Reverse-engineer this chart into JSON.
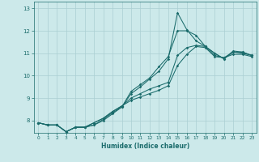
{
  "xlabel": "Humidex (Indice chaleur)",
  "xlim": [
    -0.5,
    23.5
  ],
  "ylim": [
    7.45,
    13.3
  ],
  "yticks": [
    8,
    9,
    10,
    11,
    12,
    13
  ],
  "xticks": [
    0,
    1,
    2,
    3,
    4,
    5,
    6,
    7,
    8,
    9,
    10,
    11,
    12,
    13,
    14,
    15,
    16,
    17,
    18,
    19,
    20,
    21,
    22,
    23
  ],
  "bg_color": "#cce9ea",
  "grid_color": "#aacfd2",
  "line_color": "#1a6b6b",
  "series": [
    [
      7.9,
      7.8,
      7.8,
      7.5,
      7.7,
      7.7,
      7.8,
      8.0,
      8.3,
      8.6,
      9.3,
      9.6,
      9.9,
      10.4,
      10.85,
      12.0,
      12.0,
      11.8,
      11.3,
      11.0,
      10.75,
      11.1,
      11.05,
      10.9
    ],
    [
      7.9,
      7.8,
      7.8,
      7.5,
      7.7,
      7.7,
      7.8,
      8.05,
      8.35,
      8.6,
      9.2,
      9.5,
      9.85,
      10.2,
      10.75,
      12.8,
      12.05,
      11.55,
      11.3,
      11.0,
      10.75,
      11.05,
      11.0,
      10.9
    ],
    [
      7.9,
      7.8,
      7.8,
      7.5,
      7.7,
      7.7,
      7.9,
      8.1,
      8.4,
      8.65,
      9.0,
      9.2,
      9.4,
      9.55,
      9.7,
      10.9,
      11.25,
      11.35,
      11.3,
      10.9,
      10.8,
      11.05,
      11.05,
      10.9
    ],
    [
      7.9,
      7.8,
      7.8,
      7.5,
      7.7,
      7.7,
      7.9,
      8.1,
      8.4,
      8.65,
      8.9,
      9.05,
      9.2,
      9.35,
      9.55,
      10.45,
      10.95,
      11.3,
      11.25,
      10.85,
      10.8,
      10.95,
      10.95,
      10.85
    ]
  ]
}
